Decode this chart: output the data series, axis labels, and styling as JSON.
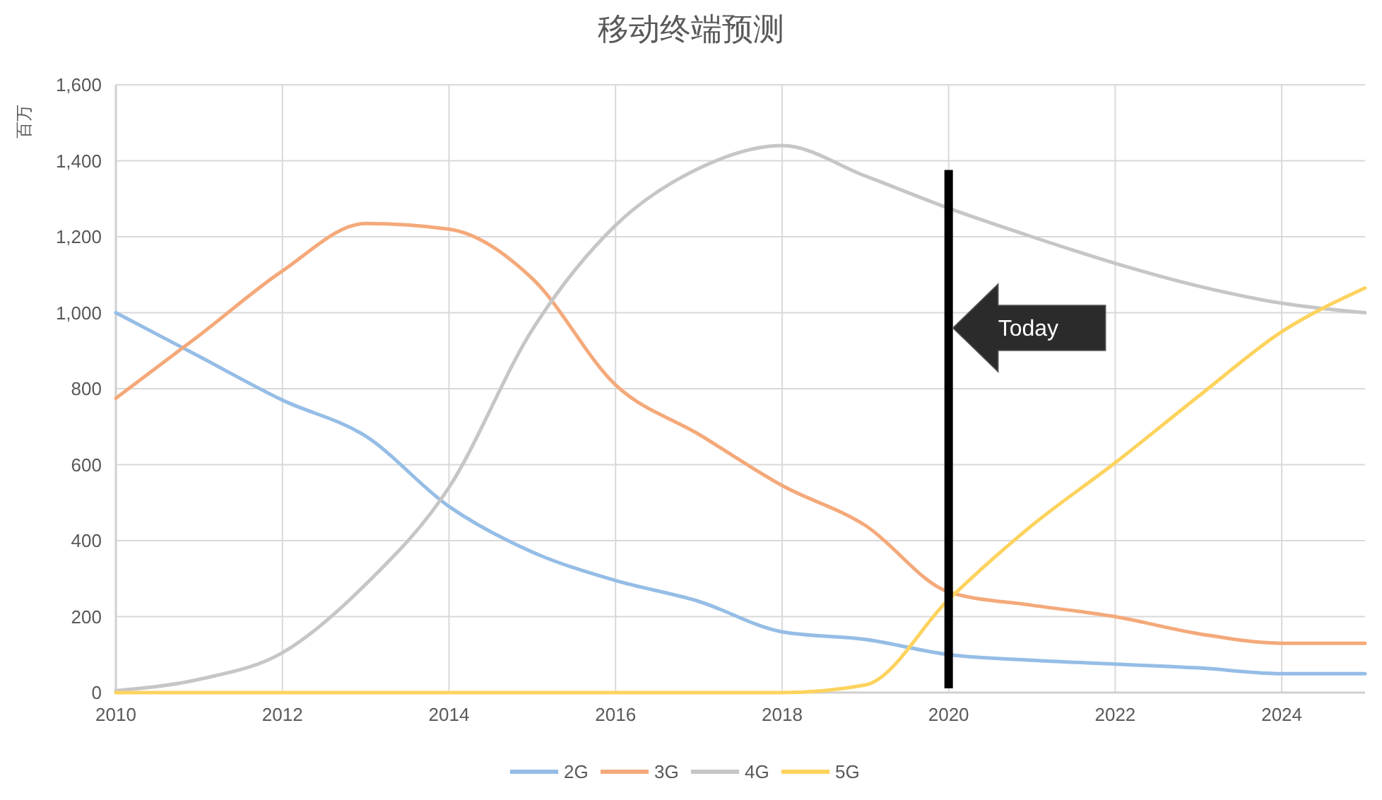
{
  "chart_data": {
    "type": "line",
    "title": "移动终端预测",
    "ylabel": "百万",
    "x": [
      2010,
      2011,
      2012,
      2013,
      2014,
      2015,
      2016,
      2017,
      2018,
      2019,
      2020,
      2021,
      2022,
      2023,
      2024,
      2025
    ],
    "series": [
      {
        "name": "2G",
        "color": "#95bde6",
        "values": [
          1000,
          885,
          770,
          675,
          490,
          370,
          295,
          240,
          160,
          140,
          100,
          85,
          75,
          65,
          50,
          50
        ]
      },
      {
        "name": "3G",
        "color": "#f4a97a",
        "values": [
          775,
          940,
          1110,
          1235,
          1220,
          1090,
          810,
          680,
          545,
          440,
          265,
          230,
          200,
          155,
          130,
          130
        ]
      },
      {
        "name": "4G",
        "color": "#c6c6c6",
        "values": [
          5,
          35,
          105,
          285,
          540,
          955,
          1230,
          1380,
          1440,
          1360,
          1275,
          1200,
          1130,
          1070,
          1025,
          1000
        ]
      },
      {
        "name": "5G",
        "color": "#fdd35e",
        "values": [
          0,
          0,
          0,
          0,
          0,
          0,
          0,
          0,
          0,
          20,
          245,
          440,
          605,
          780,
          950,
          1065
        ]
      }
    ],
    "xlim": [
      2010,
      2025
    ],
    "xticks": [
      2010,
      2012,
      2014,
      2016,
      2018,
      2020,
      2022,
      2024
    ],
    "ylim": [
      0,
      1600
    ],
    "yticks": [
      0,
      200,
      400,
      600,
      800,
      {
        "value": 1000,
        "label": "1,000"
      },
      {
        "value": 1200,
        "label": "1,200"
      },
      {
        "value": 1400,
        "label": "1,400"
      },
      {
        "value": 1600,
        "label": "1,600"
      }
    ],
    "grid": true,
    "legend": "bottom",
    "ref_lines": [
      {
        "axis": "x",
        "value": 2020,
        "label": "Today",
        "color": "#000000"
      }
    ]
  }
}
